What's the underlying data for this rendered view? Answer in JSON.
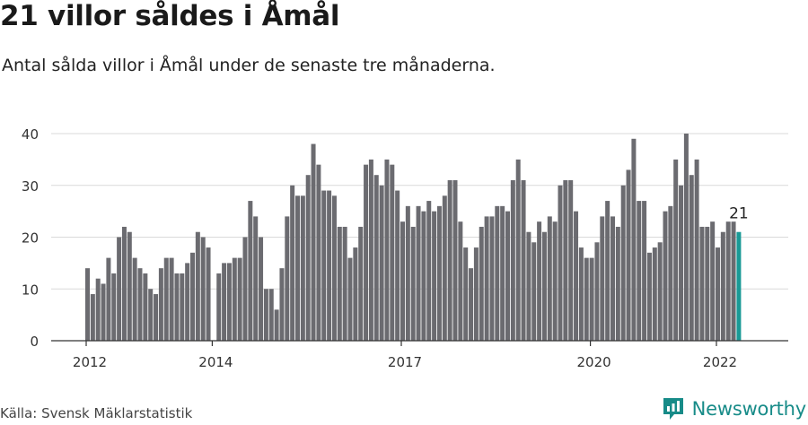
{
  "header": {
    "title": "21 villor såldes i Åmål",
    "subtitle": "Antal sålda villor i Åmål under de senaste tre månaderna."
  },
  "footer": {
    "source": "Källa: Svensk Mäklarstatistik",
    "brand": "Newsworthy",
    "brand_icon": "newsworthy-logo-icon"
  },
  "colors": {
    "bar": "#6b6b70",
    "highlight": "#1a9a96",
    "grid": "#d9d9d9",
    "axis": "#333333",
    "brand": "#178b88"
  },
  "chart_data": {
    "type": "bar",
    "start_month": "2012-01",
    "end_month": "2022-05",
    "values": [
      14,
      9,
      12,
      11,
      16,
      13,
      20,
      22,
      21,
      16,
      14,
      13,
      10,
      9,
      14,
      16,
      16,
      13,
      13,
      15,
      17,
      21,
      20,
      18,
      0,
      13,
      15,
      15,
      16,
      16,
      20,
      27,
      24,
      20,
      10,
      10,
      6,
      14,
      24,
      30,
      28,
      28,
      32,
      38,
      34,
      29,
      29,
      28,
      22,
      22,
      16,
      18,
      22,
      34,
      35,
      32,
      30,
      35,
      34,
      29,
      23,
      26,
      22,
      26,
      25,
      27,
      25,
      26,
      28,
      31,
      31,
      23,
      18,
      14,
      18,
      22,
      24,
      24,
      26,
      26,
      25,
      31,
      35,
      31,
      21,
      19,
      23,
      21,
      24,
      23,
      30,
      31,
      31,
      25,
      18,
      16,
      16,
      19,
      24,
      27,
      24,
      22,
      30,
      33,
      39,
      27,
      27,
      17,
      18,
      19,
      25,
      26,
      35,
      30,
      40,
      32,
      35,
      22,
      22,
      23,
      18,
      21,
      23,
      23,
      21
    ],
    "highlight_last": true,
    "annotation": {
      "label": "21"
    },
    "x_ticks": [
      "2012",
      "2014",
      "2017",
      "2020",
      "2022"
    ],
    "y_ticks": [
      0,
      10,
      20,
      30,
      40
    ],
    "ylim": [
      0,
      40
    ],
    "grid": "horizontal"
  }
}
